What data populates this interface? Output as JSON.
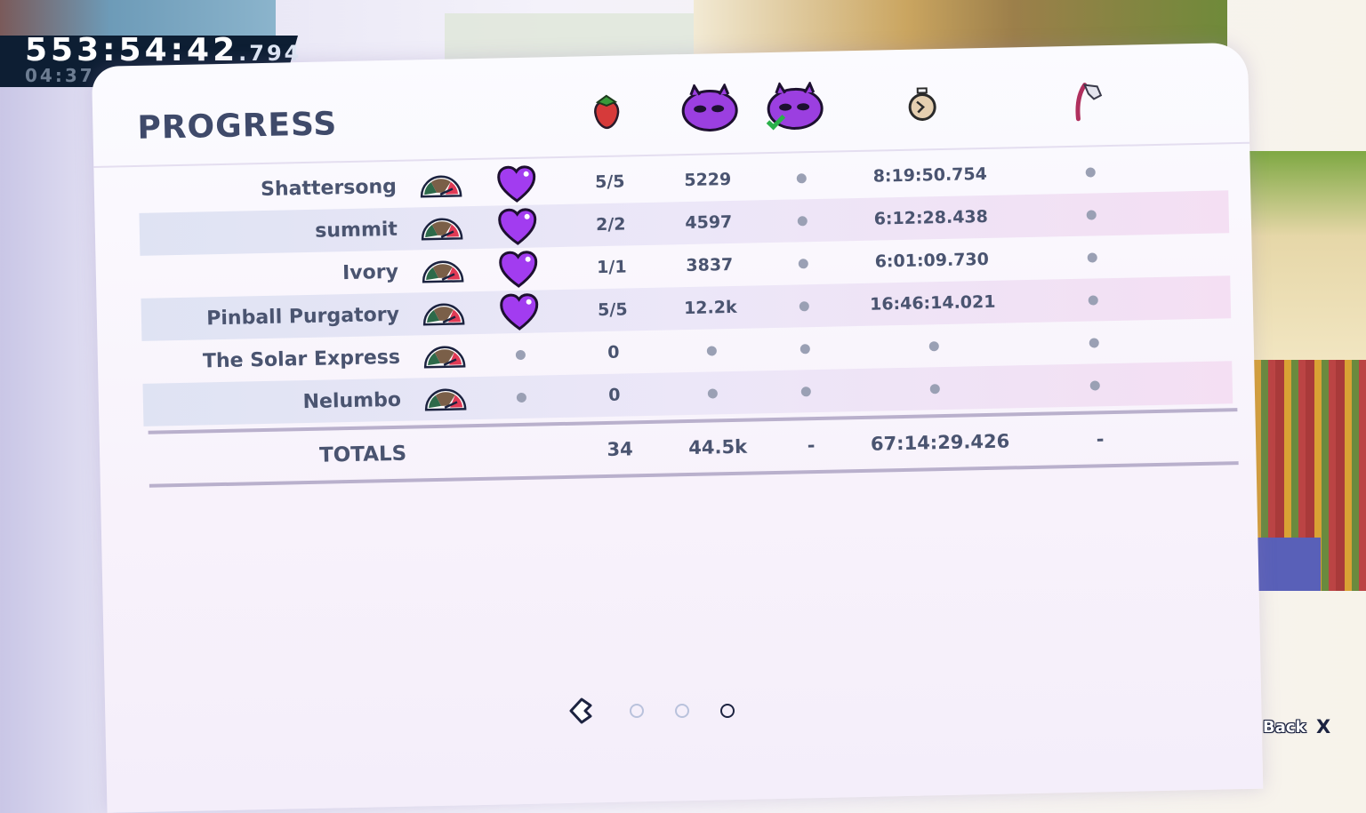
{
  "timer": {
    "main": "553:54:42",
    "ms": ".794",
    "chapter": "04:37"
  },
  "page_title": "PROGRESS",
  "columns": [
    "strawberry-icon",
    "death-skull-icon",
    "bside-death-skull-check-icon",
    "stopwatch-icon",
    "golden-flag-icon"
  ],
  "rows": [
    {
      "name": "Shattersong",
      "heart": true,
      "strawberries": "5/5",
      "deaths": "5229",
      "time": "8:19:50.754"
    },
    {
      "name": "summit",
      "heart": true,
      "strawberries": "2/2",
      "deaths": "4597",
      "time": "6:12:28.438"
    },
    {
      "name": "Ivory",
      "heart": true,
      "strawberries": "1/1",
      "deaths": "3837",
      "time": "6:01:09.730"
    },
    {
      "name": "Pinball Purgatory",
      "heart": true,
      "strawberries": "5/5",
      "deaths": "12.2k",
      "time": "16:46:14.021"
    },
    {
      "name": "The Solar Express",
      "heart": false,
      "strawberries": "0",
      "deaths": null,
      "time": null
    },
    {
      "name": "Nelumbo",
      "heart": false,
      "strawberries": "0",
      "deaths": null,
      "time": null
    }
  ],
  "totals": {
    "label": "TOTALS",
    "strawberries": "34",
    "deaths": "44.5k",
    "bside": "-",
    "time": "67:14:29.426",
    "golden": "-"
  },
  "pagination": {
    "pages": 3,
    "current": 3
  },
  "back": {
    "label": "Back",
    "key": "X"
  },
  "colors": {
    "heart": "#9b2ee8",
    "panel_text": "#4a5470",
    "timer_bg": "#0d1e33"
  }
}
